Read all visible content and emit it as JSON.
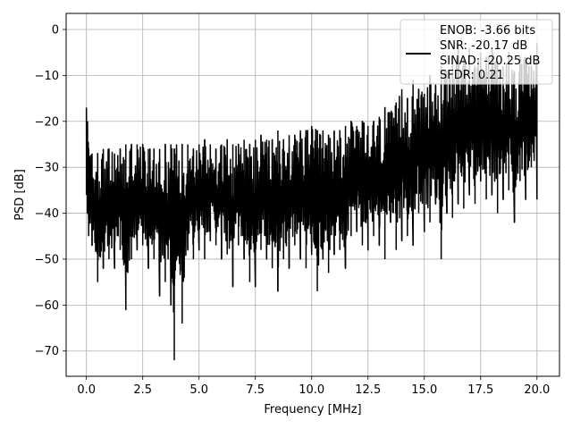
{
  "chart_data": {
    "type": "line",
    "title": "",
    "xlabel": "Frequency [MHz]",
    "ylabel": "PSD [dB]",
    "xlim": [
      -0.9,
      21.0
    ],
    "ylim": [
      -75.5,
      3.5
    ],
    "grid": true,
    "x_ticks": [
      0.0,
      2.5,
      5.0,
      7.5,
      10.0,
      12.5,
      15.0,
      17.5,
      20.0
    ],
    "x_tick_labels": [
      "0.0",
      "2.5",
      "5.0",
      "7.5",
      "10.0",
      "12.5",
      "15.0",
      "17.5",
      "20.0"
    ],
    "y_ticks": [
      0,
      -10,
      -20,
      -30,
      -40,
      -50,
      -60,
      -70
    ],
    "y_tick_labels": [
      "0",
      "−10",
      "−20",
      "−30",
      "−40",
      "−50",
      "−60",
      "−70"
    ],
    "legend": {
      "placement": "upper right",
      "entries": [
        "ENOB: -3.66 bits",
        "SNR: -20.17 dB",
        "SINAD: -20.25 dB",
        "SFDR: 0.21"
      ]
    },
    "series": [
      {
        "color": "#000000",
        "x": [
          0.0,
          0.05,
          0.1,
          0.25,
          0.5,
          0.75,
          1.0,
          1.25,
          1.5,
          1.75,
          2.0,
          2.25,
          2.5,
          2.75,
          3.0,
          3.25,
          3.5,
          3.75,
          3.9,
          4.0,
          4.25,
          4.5,
          4.75,
          5.0,
          5.25,
          5.5,
          5.75,
          6.0,
          6.25,
          6.5,
          6.75,
          7.0,
          7.25,
          7.5,
          7.75,
          8.0,
          8.25,
          8.5,
          8.75,
          9.0,
          9.25,
          9.5,
          9.75,
          10.0,
          10.25,
          10.5,
          10.75,
          11.0,
          11.25,
          11.5,
          11.75,
          12.0,
          12.25,
          12.5,
          12.75,
          13.0,
          13.25,
          13.5,
          13.75,
          14.0,
          14.25,
          14.5,
          14.75,
          15.0,
          15.25,
          15.5,
          15.75,
          16.0,
          16.25,
          16.5,
          16.75,
          17.0,
          17.25,
          17.5,
          17.75,
          18.0,
          18.25,
          18.5,
          18.75,
          19.0,
          19.25,
          19.5,
          19.75,
          20.0
        ],
        "y_upper": [
          -17,
          -20,
          -26,
          -27,
          -27,
          -26,
          -26,
          -27,
          -26,
          -25,
          -25,
          -25,
          -25,
          -26,
          -26,
          -26,
          -25,
          -25,
          -26,
          -25,
          -25,
          -25,
          -26,
          -25,
          -24,
          -25,
          -26,
          -25,
          -24,
          -25,
          -25,
          -24,
          -25,
          -24,
          -23,
          -24,
          -24,
          -22,
          -24,
          -23,
          -23,
          -22,
          -22,
          -21,
          -22,
          -22,
          -23,
          -22,
          -22,
          -21,
          -20,
          -21,
          -20,
          -21,
          -20,
          -19,
          -17,
          -18,
          -16,
          -13,
          -15,
          -11,
          -13,
          -14,
          -10,
          -12,
          -8,
          -9,
          -6,
          -3,
          -6,
          -4,
          -8,
          -5,
          -6,
          -4,
          -7,
          -8,
          -5,
          -9,
          -6,
          -6,
          -8,
          -3
        ],
        "y_lower": [
          -36,
          -40,
          -45,
          -47,
          -55,
          -52,
          -50,
          -52,
          -48,
          -61,
          -50,
          -48,
          -47,
          -52,
          -50,
          -58,
          -55,
          -60,
          -72,
          -50,
          -64,
          -48,
          -50,
          -48,
          -50,
          -46,
          -47,
          -50,
          -49,
          -56,
          -47,
          -50,
          -55,
          -56,
          -48,
          -50,
          -52,
          -57,
          -50,
          -52,
          -47,
          -50,
          -52,
          -49,
          -57,
          -50,
          -53,
          -49,
          -48,
          -52,
          -45,
          -44,
          -47,
          -48,
          -45,
          -47,
          -50,
          -42,
          -48,
          -46,
          -45,
          -47,
          -40,
          -44,
          -42,
          -38,
          -50,
          -40,
          -41,
          -38,
          -39,
          -36,
          -38,
          -33,
          -37,
          -36,
          -40,
          -37,
          -35,
          -42,
          -33,
          -37,
          -30,
          -37
        ]
      }
    ]
  }
}
